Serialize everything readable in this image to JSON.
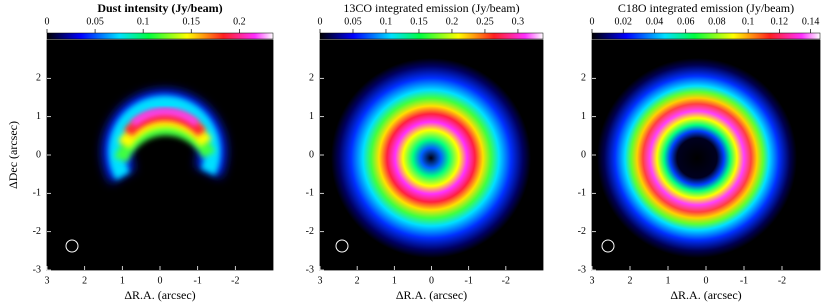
{
  "chart_data": [
    {
      "type": "image",
      "title": "Dust intensity (Jy/beam)",
      "clim": [
        0,
        0.235
      ],
      "cticks": [
        0,
        0.05,
        0.1,
        0.15,
        0.2
      ],
      "xlim": [
        3,
        -3
      ],
      "ylim": [
        -3,
        3
      ],
      "xticks": [
        3,
        2,
        1,
        0,
        -1,
        -2
      ],
      "yticks": [
        -3,
        -2,
        -1,
        0,
        1,
        2
      ],
      "x_label": "ΔR.A. (arcsec)",
      "y_label": "ΔDec (arcsec)"
    },
    {
      "type": "image",
      "title": "13CO integrated emission (Jy/beam)",
      "clim": [
        0,
        0.338
      ],
      "cticks": [
        0,
        0.05,
        0.1,
        0.15,
        0.2,
        0.25,
        0.3
      ],
      "xlim": [
        3,
        -3
      ],
      "ylim": [
        -3,
        3
      ],
      "xticks": [
        3,
        2,
        1,
        0,
        -1,
        -2
      ],
      "yticks": [
        -3,
        -2,
        -1,
        0,
        1,
        2
      ],
      "x_label": "ΔR.A. (arcsec)"
    },
    {
      "type": "image",
      "title": "C18O integrated emission (Jy/beam)",
      "clim": [
        0,
        0.146
      ],
      "cticks": [
        0,
        0.02,
        0.04,
        0.06,
        0.08,
        0.1,
        0.12,
        0.14
      ],
      "xlim": [
        3,
        -3
      ],
      "ylim": [
        -3,
        3
      ],
      "xticks": [
        3,
        2,
        1,
        0,
        -1,
        -2
      ],
      "yticks": [
        -3,
        -2,
        -1,
        0,
        1,
        2
      ],
      "x_label": "ΔR.A. (arcsec)"
    }
  ]
}
